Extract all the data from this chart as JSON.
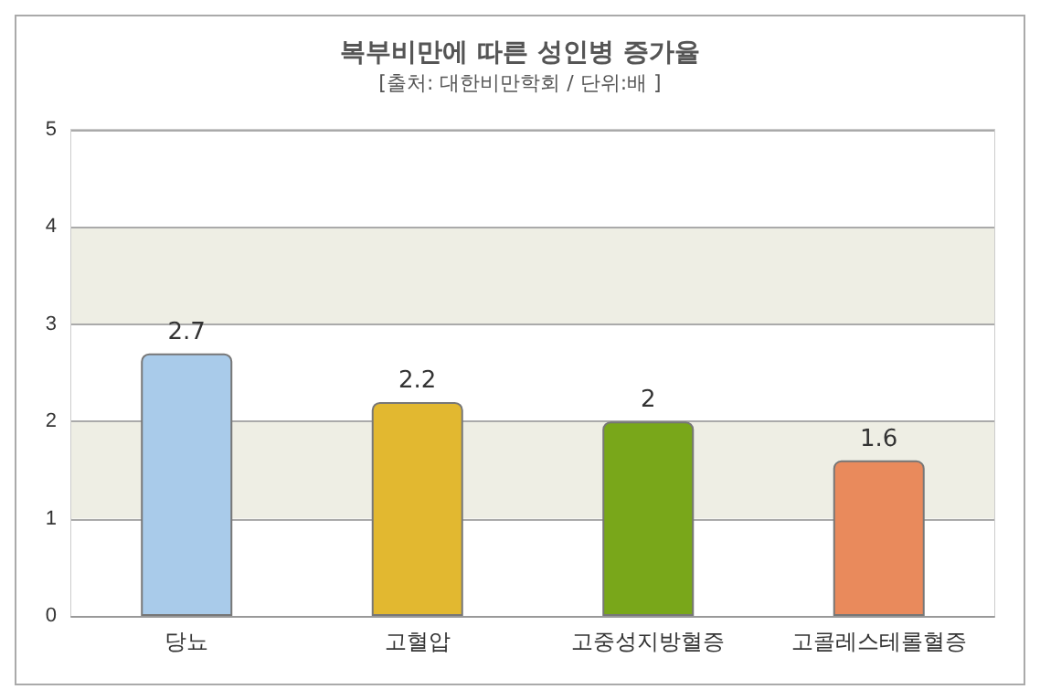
{
  "chart_data": {
    "type": "bar",
    "title": "복부비만에 따른 성인병 증가율",
    "subtitle": "[출처: 대한비만학회 / 단위:배 ]",
    "categories": [
      "당뇨",
      "고혈압",
      "고중성지방혈증",
      "고콜레스테롤혈증"
    ],
    "values": [
      2.7,
      2.2,
      2,
      1.6
    ],
    "colors": [
      "#a9cbea",
      "#e2b830",
      "#79a71a",
      "#e98a5c"
    ],
    "ylim": [
      0,
      5
    ],
    "yticks": [
      0,
      1,
      2,
      3,
      4,
      5
    ],
    "grid": "y",
    "data_labels": true
  }
}
